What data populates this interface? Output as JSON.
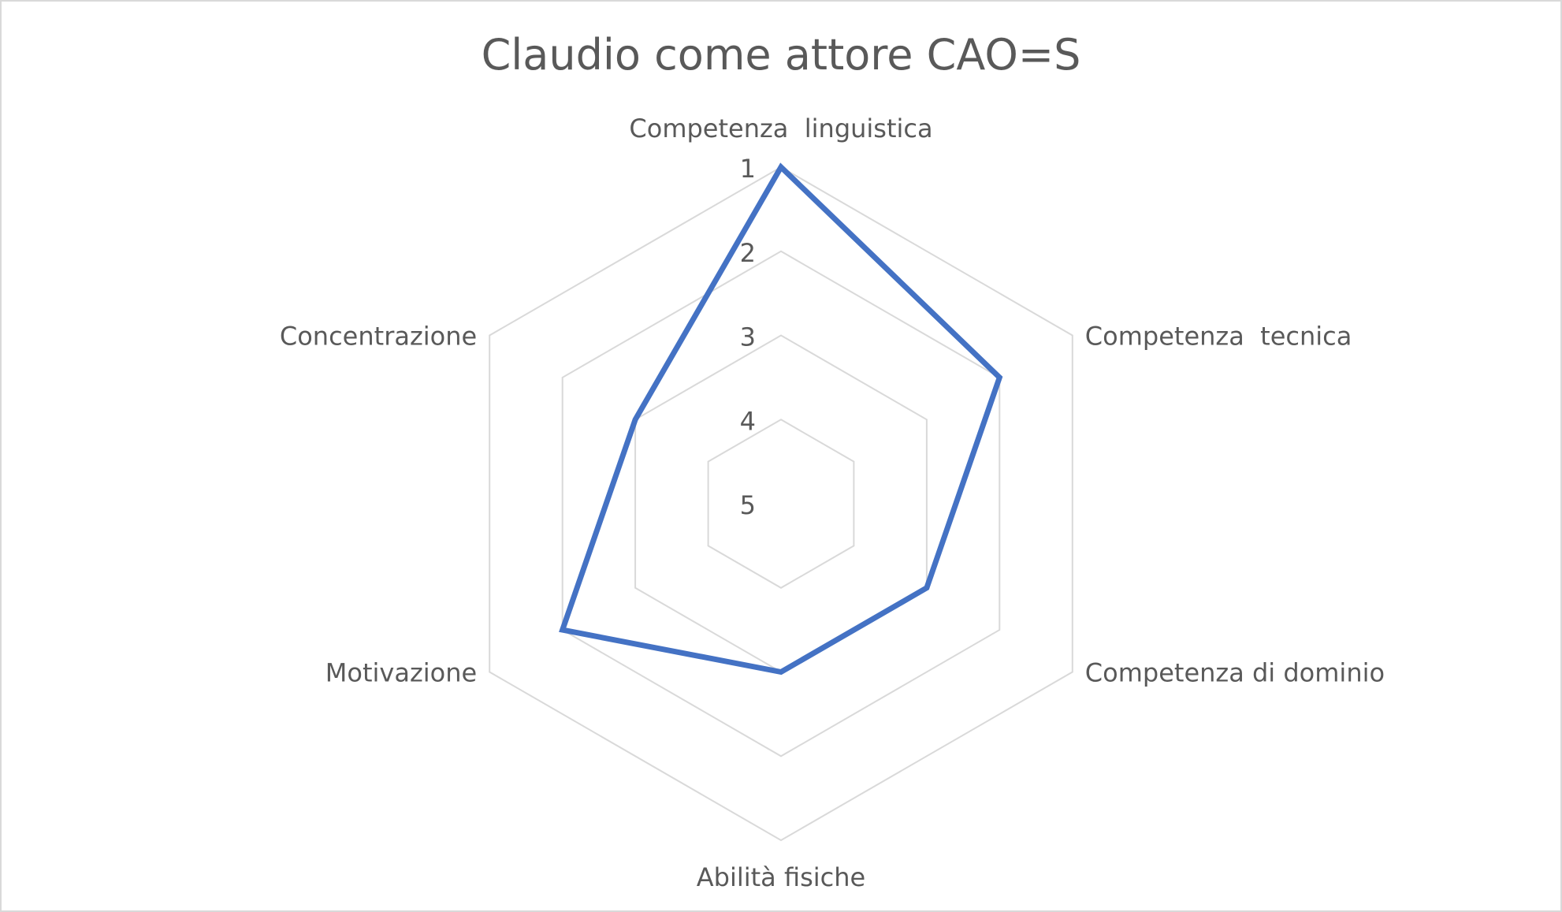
{
  "chart_data": {
    "type": "radar",
    "title": "Claudio come attore CAO=S",
    "axes": [
      "Competenza  linguistica",
      "Competenza  tecnica",
      "Competenza di dominio",
      "Abilità fisiche",
      "Motivazione",
      "Concentrazione"
    ],
    "scale": {
      "ticks": [
        "1",
        "2",
        "3",
        "4",
        "5"
      ],
      "outer": 1,
      "inner": 5,
      "reversed": true
    },
    "grid": true,
    "legend": "none",
    "series": [
      {
        "values": [
          1,
          2,
          3,
          3,
          2,
          3
        ],
        "color": "#4472c4"
      }
    ]
  }
}
